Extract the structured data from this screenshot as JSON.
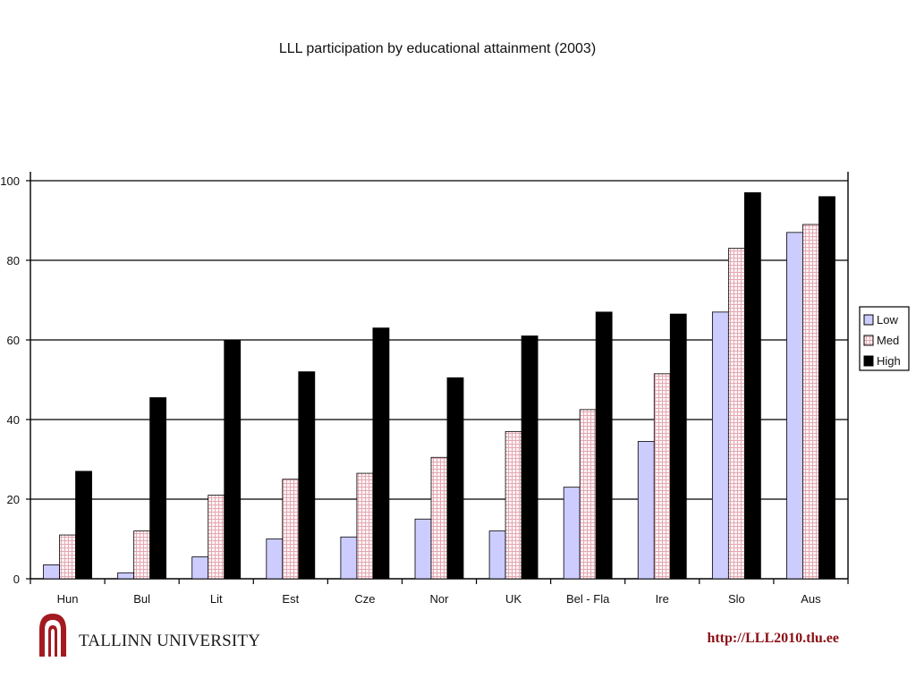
{
  "chart_data": {
    "type": "bar",
    "title": "LLL participation by educational attainment (2003)",
    "xlabel": "",
    "ylabel": "",
    "categories": [
      "Hun",
      "Bul",
      "Lit",
      "Est",
      "Cze",
      "Nor",
      "UK",
      "Bel - Fla",
      "Ire",
      "Slo",
      "Aus"
    ],
    "series": [
      {
        "name": "Low",
        "color": "#ccccff",
        "pattern": "solid",
        "values": [
          3.5,
          1.5,
          5.5,
          10,
          10.5,
          15,
          12,
          23,
          34.5,
          67,
          87
        ]
      },
      {
        "name": "Med",
        "color": "#fff0f0",
        "pattern": "pink-grid",
        "values": [
          11,
          12,
          21,
          25,
          26.5,
          30.5,
          37,
          42.5,
          51.5,
          83,
          89
        ]
      },
      {
        "name": "High",
        "color": "#000000",
        "pattern": "solid",
        "values": [
          27,
          45.5,
          60,
          52,
          63,
          50.5,
          61,
          67,
          66.5,
          97,
          96
        ]
      }
    ],
    "ylim": [
      0,
      100
    ],
    "yticks": [
      0,
      20,
      40,
      60,
      80,
      100
    ],
    "grid": true,
    "legend_position": "right"
  },
  "footer": {
    "university": "TALLINN UNIVERSITY",
    "url": "http://LLL2010.tlu.ee",
    "logo_icon": "tallinn-university-arch-logo"
  }
}
